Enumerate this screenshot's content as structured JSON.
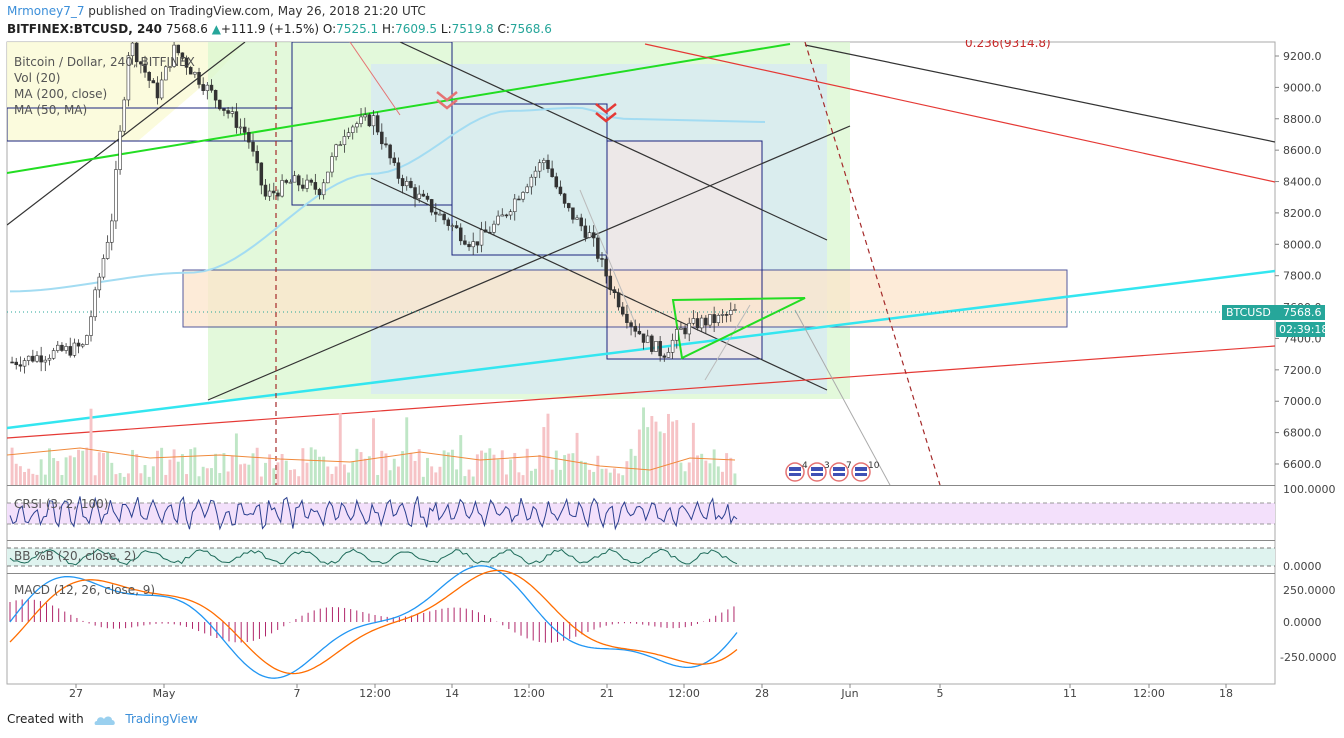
{
  "header": {
    "publisher": "Mrmoney7_7",
    "published_text": "published on TradingView.com, May 26, 2018 21:20 UTC",
    "symbol": "BITFINEX:BTCUSD, 240",
    "last": "7568.6",
    "change": "+111.9 (+1.5%)",
    "o_label": "O:",
    "o_value": "7525.1",
    "h_label": "H:",
    "h_value": "7609.5",
    "l_label": "L:",
    "l_value": "7519.8",
    "c_label": "C:",
    "c_value": "7568.6"
  },
  "legend": {
    "title": "Bitcoin / Dollar, 240, BITFINEX",
    "vol": "Vol (20)",
    "ma1": "MA (200, close)",
    "ma2": "MA (50, MA)"
  },
  "top_clip_text": "0.236(9314.8)",
  "price_badge": "BTCUSD",
  "price_badge_value": "7568.6",
  "countdown": "02:39:18",
  "events": [
    "4",
    "3",
    "7",
    "10"
  ],
  "chart_data": {
    "type": "candlestick",
    "ylim": [
      6500,
      9300
    ],
    "yticks": [
      "9200.0",
      "9000.0",
      "8800.0",
      "8600.0",
      "8400.0",
      "8200.0",
      "8000.0",
      "7800.0",
      "7600.0",
      "7400.0",
      "7200.0",
      "7000.0",
      "6800.0",
      "6600.0"
    ],
    "xticks": [
      "27",
      "May",
      "7",
      "12:00",
      "14",
      "12:00",
      "21",
      "12:00",
      "28",
      "Jun",
      "5",
      "11",
      "12:00",
      "18"
    ],
    "price_path": [
      [
        0,
        7250
      ],
      [
        0.8,
        7300
      ],
      [
        1.6,
        7350
      ],
      [
        2.2,
        8150
      ],
      [
        2.6,
        9300
      ],
      [
        3.2,
        8950
      ],
      [
        3.6,
        9250
      ],
      [
        4.0,
        9100
      ],
      [
        4.6,
        8900
      ],
      [
        5.2,
        8700
      ],
      [
        5.6,
        8300
      ],
      [
        6.2,
        8400
      ],
      [
        6.8,
        8350
      ],
      [
        7.4,
        8750
      ],
      [
        8.0,
        8800
      ],
      [
        8.5,
        8450
      ],
      [
        9.0,
        8300
      ],
      [
        9.6,
        8150
      ],
      [
        10.2,
        8000
      ],
      [
        10.8,
        8150
      ],
      [
        11.4,
        8400
      ],
      [
        11.8,
        8550
      ],
      [
        12.2,
        8250
      ],
      [
        12.8,
        8050
      ],
      [
        13.3,
        7700
      ],
      [
        13.7,
        7500
      ],
      [
        14.0,
        7400
      ],
      [
        14.4,
        7300
      ],
      [
        14.8,
        7450
      ],
      [
        15.2,
        7500
      ],
      [
        15.6,
        7520
      ],
      [
        16.0,
        7568
      ]
    ],
    "ma200": [
      [
        0,
        7700
      ],
      [
        4,
        7820
      ],
      [
        8,
        8450
      ],
      [
        11,
        8850
      ],
      [
        12.5,
        8870
      ],
      [
        13.5,
        8800
      ]
    ],
    "volume_note": "",
    "indicators": {
      "crsi": {
        "label": "CRSI (3, 2, 100)",
        "ticks": [
          "100.0000"
        ]
      },
      "bbb": {
        "label": "BB %B (20, close, 2)",
        "ticks": [
          "0.0000"
        ]
      },
      "macd": {
        "label": "MACD (12, 26, close, 9)",
        "ticks": [
          "250.0000",
          "0.0000",
          "-250.0000"
        ]
      }
    }
  },
  "footer": {
    "created_with": "Created with",
    "brand": "TradingView"
  },
  "colors": {
    "cyan_trend": "#33e6f0",
    "green_trend": "#22dd22",
    "red_trend": "#e53935",
    "dark_trend": "#333333",
    "up_candle": "#26a69a",
    "down_candle": "#ef5350"
  }
}
